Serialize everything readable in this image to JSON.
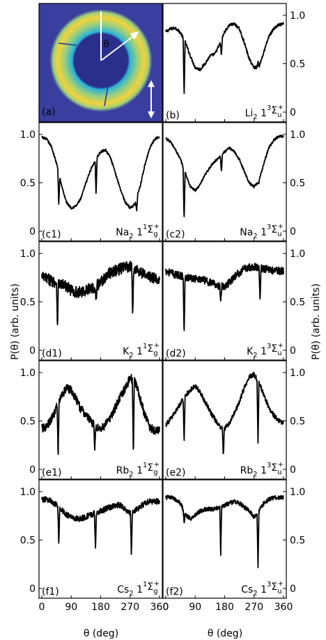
{
  "figure": {
    "xlabel": "θ (deg)",
    "ylabel": "P(θ) (arb. units)",
    "xticks": [
      "0",
      "90",
      "180",
      "270",
      "360"
    ],
    "yticks": [
      "0",
      "0.5",
      "1.0"
    ],
    "image_panel": {
      "label": "(a)",
      "theta_symbol": "θ",
      "colors": {
        "background": "#3a3f9f",
        "ring_outer": "#f2d23a",
        "ring_mid": "#9fd07a",
        "ring_inner": "#2bb3d6",
        "hole": "#2a2f8c"
      }
    }
  },
  "chart_data": [
    {
      "id": "b",
      "type": "line",
      "label": "(b)",
      "molecule": "Li",
      "subscript": "2",
      "state_prefix": "1",
      "state_sup": "3",
      "term": "Σ",
      "term_sub": "u",
      "term_sup": "+",
      "x": [
        0,
        15,
        30,
        45,
        60,
        75,
        90,
        105,
        120,
        135,
        150,
        165,
        180,
        195,
        210,
        225,
        240,
        255,
        270,
        285,
        300,
        315,
        330,
        345,
        360
      ],
      "y": [
        0.83,
        0.86,
        0.87,
        0.82,
        0.72,
        0.58,
        0.46,
        0.44,
        0.5,
        0.58,
        0.6,
        0.7,
        0.83,
        0.9,
        0.91,
        0.86,
        0.72,
        0.55,
        0.46,
        0.47,
        0.62,
        0.78,
        0.86,
        0.9,
        0.91
      ],
      "dips": [
        {
          "x": 56,
          "y": 0.16
        },
        {
          "x": 170,
          "y": 0.58
        },
        {
          "x": 282,
          "y": 0.52
        }
      ],
      "noise": 0.015,
      "ylim": [
        0,
        1.05
      ],
      "xlim": [
        0,
        360
      ]
    },
    {
      "id": "c1",
      "type": "line",
      "label": "(c1)",
      "molecule": "Na",
      "subscript": "2",
      "state_prefix": "1",
      "state_sup": "1",
      "term": "Σ",
      "term_sub": "g",
      "term_sup": "+",
      "x": [
        0,
        15,
        30,
        45,
        60,
        75,
        90,
        105,
        120,
        135,
        150,
        165,
        180,
        195,
        210,
        225,
        240,
        255,
        270,
        285,
        300,
        315,
        330,
        345,
        360
      ],
      "y": [
        0.97,
        0.95,
        0.87,
        0.7,
        0.48,
        0.3,
        0.24,
        0.26,
        0.34,
        0.5,
        0.64,
        0.74,
        0.82,
        0.84,
        0.76,
        0.6,
        0.44,
        0.3,
        0.24,
        0.28,
        0.45,
        0.68,
        0.86,
        0.95,
        0.98
      ],
      "dips": [
        {
          "x": 52,
          "y": 0.26
        },
        {
          "x": 166,
          "y": 0.37
        },
        {
          "x": 290,
          "y": 0.2
        }
      ],
      "noise": 0.012,
      "ylim": [
        0,
        1.05
      ],
      "xlim": [
        0,
        360
      ]
    },
    {
      "id": "c2",
      "type": "line",
      "label": "(c2)",
      "molecule": "Na",
      "subscript": "2",
      "state_prefix": "1",
      "state_sup": "3",
      "term": "Σ",
      "term_sub": "u",
      "term_sup": "+",
      "x": [
        0,
        15,
        30,
        45,
        60,
        75,
        90,
        105,
        120,
        135,
        150,
        165,
        180,
        195,
        210,
        225,
        240,
        255,
        270,
        285,
        300,
        315,
        330,
        345,
        360
      ],
      "y": [
        0.96,
        0.92,
        0.84,
        0.74,
        0.6,
        0.46,
        0.42,
        0.48,
        0.58,
        0.66,
        0.72,
        0.77,
        0.82,
        0.86,
        0.82,
        0.74,
        0.62,
        0.5,
        0.46,
        0.52,
        0.7,
        0.86,
        0.94,
        0.98,
        0.98
      ],
      "dips": [
        {
          "x": 56,
          "y": 0.1
        },
        {
          "x": 170,
          "y": 0.6
        },
        {
          "x": 284,
          "y": 0.48
        }
      ],
      "noise": 0.012,
      "ylim": [
        0,
        1.05
      ],
      "xlim": [
        0,
        360
      ]
    },
    {
      "id": "d1",
      "type": "line",
      "label": "(d1)",
      "molecule": "K",
      "subscript": "2",
      "state_prefix": "1",
      "state_sup": "1",
      "term": "Σ",
      "term_sub": "g",
      "term_sup": "+",
      "x": [
        0,
        15,
        30,
        45,
        60,
        75,
        90,
        105,
        120,
        135,
        150,
        165,
        180,
        195,
        210,
        225,
        240,
        255,
        270,
        285,
        300,
        315,
        330,
        345,
        360
      ],
      "y": [
        0.76,
        0.74,
        0.72,
        0.7,
        0.68,
        0.66,
        0.62,
        0.6,
        0.6,
        0.62,
        0.64,
        0.66,
        0.7,
        0.76,
        0.8,
        0.82,
        0.84,
        0.86,
        0.86,
        0.84,
        0.82,
        0.78,
        0.76,
        0.74,
        0.74
      ],
      "dips": [
        {
          "x": 48,
          "y": 0.26
        },
        {
          "x": 166,
          "y": 0.5
        },
        {
          "x": 278,
          "y": 0.36
        }
      ],
      "noise": 0.06,
      "ylim": [
        0,
        1.05
      ],
      "xlim": [
        0,
        360
      ]
    },
    {
      "id": "d2",
      "type": "line",
      "label": "(d2)",
      "molecule": "K",
      "subscript": "2",
      "state_prefix": "1",
      "state_sup": "3",
      "term": "Σ",
      "term_sub": "u",
      "term_sup": "+",
      "x": [
        0,
        15,
        30,
        45,
        60,
        75,
        90,
        105,
        120,
        135,
        150,
        165,
        180,
        195,
        210,
        225,
        240,
        255,
        270,
        285,
        300,
        315,
        330,
        345,
        360
      ],
      "y": [
        0.82,
        0.8,
        0.78,
        0.77,
        0.76,
        0.75,
        0.74,
        0.73,
        0.72,
        0.7,
        0.68,
        0.66,
        0.66,
        0.7,
        0.76,
        0.8,
        0.84,
        0.86,
        0.86,
        0.86,
        0.84,
        0.84,
        0.82,
        0.82,
        0.82
      ],
      "dips": [
        {
          "x": 56,
          "y": 0.14
        },
        {
          "x": 168,
          "y": 0.52
        },
        {
          "x": 288,
          "y": 0.52
        }
      ],
      "noise": 0.04,
      "ylim": [
        0,
        1.05
      ],
      "xlim": [
        0,
        360
      ]
    },
    {
      "id": "e1",
      "type": "line",
      "label": "(e1)",
      "molecule": "Rb",
      "subscript": "2",
      "state_prefix": "1",
      "state_sup": "1",
      "term": "Σ",
      "term_sub": "g",
      "term_sup": "+",
      "x": [
        0,
        15,
        30,
        45,
        60,
        75,
        90,
        105,
        120,
        135,
        150,
        165,
        180,
        195,
        210,
        225,
        240,
        255,
        270,
        285,
        300,
        315,
        330,
        345,
        360
      ],
      "y": [
        0.42,
        0.44,
        0.52,
        0.64,
        0.76,
        0.84,
        0.82,
        0.72,
        0.62,
        0.56,
        0.5,
        0.44,
        0.42,
        0.46,
        0.54,
        0.64,
        0.74,
        0.84,
        0.94,
        0.92,
        0.74,
        0.56,
        0.44,
        0.4,
        0.42
      ],
      "dips": [
        {
          "x": 50,
          "y": 0.12
        },
        {
          "x": 162,
          "y": 0.18
        },
        {
          "x": 280,
          "y": 0.14
        }
      ],
      "noise": 0.045,
      "ylim": [
        0,
        1.05
      ],
      "xlim": [
        0,
        360
      ]
    },
    {
      "id": "e2",
      "type": "line",
      "label": "(e2)",
      "molecule": "Rb",
      "subscript": "2",
      "state_prefix": "1",
      "state_sup": "3",
      "term": "Σ",
      "term_sub": "u",
      "term_sup": "+",
      "x": [
        0,
        15,
        30,
        45,
        60,
        75,
        90,
        105,
        120,
        135,
        150,
        165,
        180,
        195,
        210,
        225,
        240,
        255,
        270,
        285,
        300,
        315,
        330,
        345,
        360
      ],
      "y": [
        0.46,
        0.52,
        0.6,
        0.68,
        0.76,
        0.82,
        0.86,
        0.8,
        0.7,
        0.6,
        0.52,
        0.44,
        0.42,
        0.48,
        0.58,
        0.7,
        0.84,
        0.96,
        0.98,
        0.9,
        0.76,
        0.64,
        0.56,
        0.5,
        0.48
      ],
      "dips": [
        {
          "x": 56,
          "y": 0.26
        },
        {
          "x": 176,
          "y": 0.12
        },
        {
          "x": 282,
          "y": 0.26
        }
      ],
      "noise": 0.025,
      "ylim": [
        0,
        1.05
      ],
      "xlim": [
        0,
        360
      ]
    },
    {
      "id": "f1",
      "type": "line",
      "label": "(f1)",
      "molecule": "Cs",
      "subscript": "2",
      "state_prefix": "1",
      "state_sup": "1",
      "term": "Σ",
      "term_sub": "g",
      "term_sup": "+",
      "x": [
        0,
        15,
        30,
        45,
        60,
        75,
        90,
        105,
        120,
        135,
        150,
        165,
        180,
        195,
        210,
        225,
        240,
        255,
        270,
        285,
        300,
        315,
        330,
        345,
        360
      ],
      "y": [
        0.92,
        0.92,
        0.9,
        0.86,
        0.82,
        0.76,
        0.74,
        0.72,
        0.72,
        0.74,
        0.76,
        0.78,
        0.8,
        0.82,
        0.84,
        0.86,
        0.86,
        0.82,
        0.78,
        0.8,
        0.84,
        0.88,
        0.9,
        0.9,
        0.9
      ],
      "dips": [
        {
          "x": 52,
          "y": 0.44
        },
        {
          "x": 164,
          "y": 0.4
        },
        {
          "x": 274,
          "y": 0.34
        }
      ],
      "noise": 0.03,
      "ylim": [
        0,
        1.05
      ],
      "xlim": [
        0,
        360
      ]
    },
    {
      "id": "f2",
      "type": "line",
      "label": "(f2)",
      "molecule": "Cs",
      "subscript": "2",
      "state_prefix": "1",
      "state_sup": "3",
      "term": "Σ",
      "term_sub": "u",
      "term_sup": "+",
      "x": [
        0,
        15,
        30,
        45,
        60,
        75,
        90,
        105,
        120,
        135,
        150,
        165,
        180,
        195,
        210,
        225,
        240,
        255,
        270,
        285,
        300,
        315,
        330,
        345,
        360
      ],
      "y": [
        0.94,
        0.94,
        0.92,
        0.88,
        0.76,
        0.72,
        0.76,
        0.8,
        0.82,
        0.82,
        0.82,
        0.84,
        0.86,
        0.88,
        0.9,
        0.88,
        0.84,
        0.8,
        0.74,
        0.8,
        0.88,
        0.92,
        0.94,
        0.94,
        0.94
      ],
      "dips": [
        {
          "x": 56,
          "y": 0.68
        },
        {
          "x": 168,
          "y": 0.36
        },
        {
          "x": 282,
          "y": 0.22
        }
      ],
      "noise": 0.022,
      "ylim": [
        0,
        1.05
      ],
      "xlim": [
        0,
        360
      ]
    }
  ]
}
